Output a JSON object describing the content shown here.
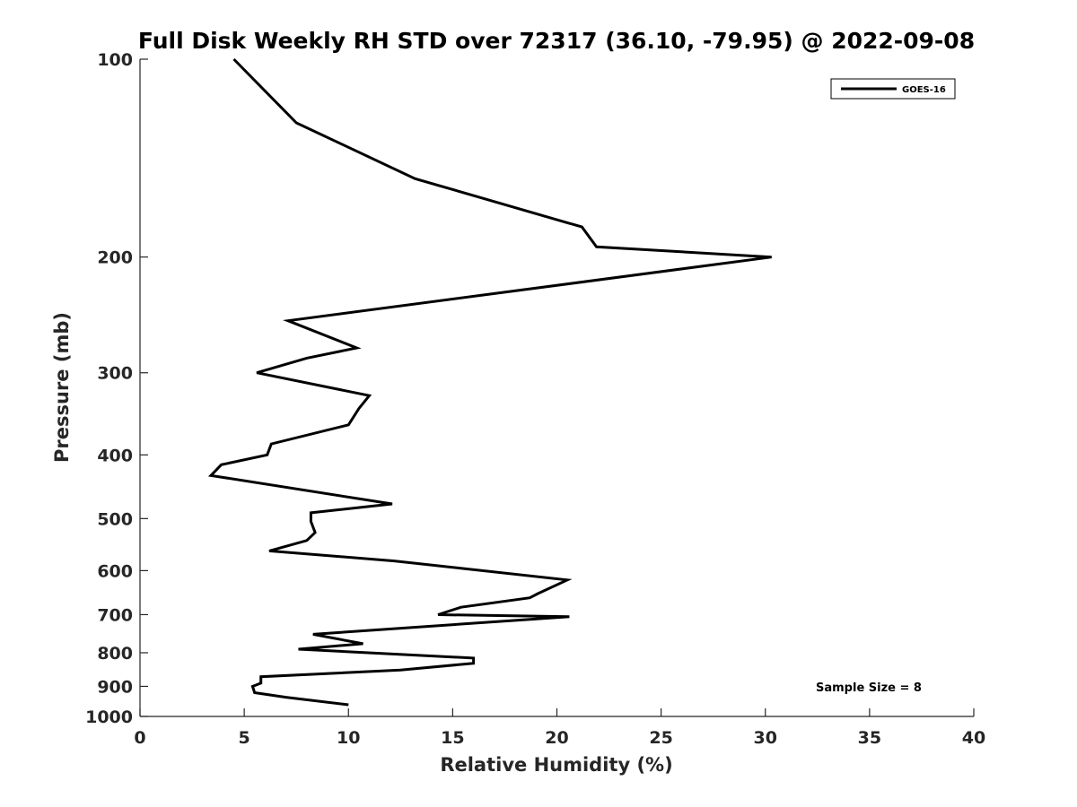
{
  "chart_data": {
    "type": "line",
    "title": "Full Disk Weekly RH STD over 72317 (36.10, -79.95) @ 2022-09-08",
    "xlabel": "Relative Humidity (%)",
    "ylabel": "Pressure (mb)",
    "xlim": [
      0,
      40
    ],
    "ylim": [
      1000,
      100
    ],
    "y_scale": "log",
    "x_ticks": [
      0,
      5,
      10,
      15,
      20,
      25,
      30,
      35,
      40
    ],
    "y_ticks": [
      100,
      200,
      300,
      400,
      500,
      600,
      700,
      800,
      900,
      1000
    ],
    "grid": false,
    "legend": {
      "position": "top-right",
      "entries": [
        "GOES-16"
      ]
    },
    "annotations": [
      "Sample Size = 8"
    ],
    "series": [
      {
        "name": "GOES-16",
        "color": "#000000",
        "points": [
          [
            4.5,
            100
          ],
          [
            7.5,
            125
          ],
          [
            13.2,
            152
          ],
          [
            21.2,
            180
          ],
          [
            21.9,
            193
          ],
          [
            30.3,
            200
          ],
          [
            7.1,
            250
          ],
          [
            10.4,
            275
          ],
          [
            8.0,
            285
          ],
          [
            5.6,
            300
          ],
          [
            11.0,
            325
          ],
          [
            10.5,
            340
          ],
          [
            10.0,
            360
          ],
          [
            6.3,
            385
          ],
          [
            6.1,
            400
          ],
          [
            3.9,
            414
          ],
          [
            3.4,
            430
          ],
          [
            12.1,
            475
          ],
          [
            8.2,
            490
          ],
          [
            8.2,
            505
          ],
          [
            8.4,
            525
          ],
          [
            8.0,
            540
          ],
          [
            6.2,
            560
          ],
          [
            12.2,
            580
          ],
          [
            20.5,
            620
          ],
          [
            19.1,
            650
          ],
          [
            18.7,
            660
          ],
          [
            15.4,
            682
          ],
          [
            14.3,
            700
          ],
          [
            20.6,
            705
          ],
          [
            8.3,
            750
          ],
          [
            10.7,
            775
          ],
          [
            7.6,
            790
          ],
          [
            16.0,
            815
          ],
          [
            16.0,
            830
          ],
          [
            12.5,
            850
          ],
          [
            5.8,
            870
          ],
          [
            5.8,
            890
          ],
          [
            5.4,
            900
          ],
          [
            5.5,
            920
          ],
          [
            7.0,
            935
          ],
          [
            10.0,
            960
          ]
        ]
      }
    ]
  }
}
